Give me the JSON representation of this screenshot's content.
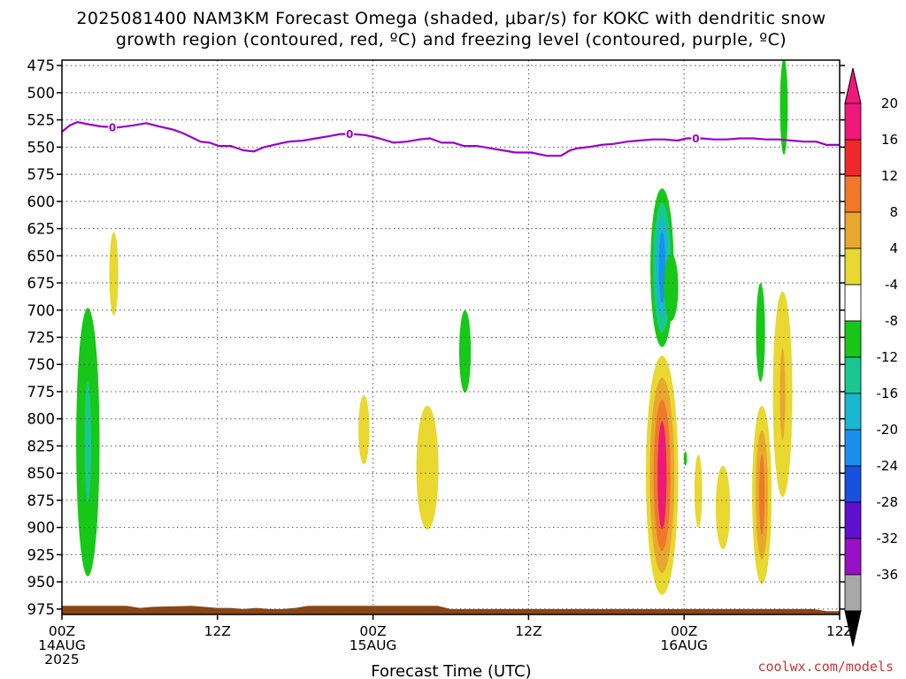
{
  "chart_data": {
    "type": "time-height contour",
    "title_lines": [
      "2025081400 NAM3KM Forecast Omega (shaded, μbar/s) for KOKC with dendritic snow",
      "growth region (contoured, red, ºC) and freezing level (contoured, purple, ºC)"
    ],
    "xlabel": "Forecast Time (UTC)",
    "credit": "coolwx.com/models",
    "x_unit": "forecast hour",
    "x_range": [
      0,
      60
    ],
    "y_unit": "hPa",
    "y_range": [
      470,
      980
    ],
    "y_ticks": [
      475,
      500,
      525,
      550,
      575,
      600,
      625,
      650,
      675,
      700,
      725,
      750,
      775,
      800,
      825,
      850,
      875,
      900,
      925,
      950,
      975
    ],
    "x_ticks": [
      {
        "h": 0,
        "lines": [
          "00Z",
          "14AUG",
          "2025"
        ]
      },
      {
        "h": 12,
        "lines": [
          "12Z"
        ]
      },
      {
        "h": 24,
        "lines": [
          "00Z",
          "15AUG"
        ]
      },
      {
        "h": 36,
        "lines": [
          "12Z"
        ]
      },
      {
        "h": 48,
        "lines": [
          "00Z",
          "16AUG"
        ]
      },
      {
        "h": 60,
        "lines": [
          "12Z"
        ]
      }
    ],
    "colorbar": {
      "labels": [
        "20",
        "16",
        "12",
        "8",
        "4",
        "-4",
        "-8",
        "-12",
        "-16",
        "-20",
        "-24",
        "-28",
        "-32",
        "-36"
      ],
      "colors_top_to_bottom": [
        "#f0187a",
        "#f02828",
        "#f07828",
        "#e8a830",
        "#e8d830",
        "#ffffff",
        "#18c818",
        "#18c890",
        "#18b8d0",
        "#1890f0",
        "#1850e0",
        "#6010d0",
        "#9810c8",
        "#a8a8a8"
      ],
      "top_arrow_color": "#f0187a",
      "bottom_arrow_color": "#000000"
    },
    "freezing_level": {
      "color": "#9900cc",
      "label": "0",
      "label_hours": [
        3.9,
        22.2,
        48.9
      ],
      "points": [
        [
          0,
          536
        ],
        [
          0.6,
          530
        ],
        [
          1.2,
          527
        ],
        [
          2,
          529
        ],
        [
          3,
          531
        ],
        [
          4.3,
          532
        ],
        [
          5.5,
          530
        ],
        [
          6.5,
          528
        ],
        [
          7.5,
          531
        ],
        [
          8.6,
          534
        ],
        [
          9.3,
          537
        ],
        [
          10,
          541
        ],
        [
          10.7,
          545
        ],
        [
          11.4,
          546
        ],
        [
          12.1,
          549
        ],
        [
          13,
          549
        ],
        [
          14,
          553
        ],
        [
          14.8,
          554
        ],
        [
          15.6,
          550
        ],
        [
          16.7,
          547
        ],
        [
          17.5,
          545
        ],
        [
          18.6,
          544
        ],
        [
          19.6,
          542
        ],
        [
          20.6,
          540
        ],
        [
          21.5,
          538
        ],
        [
          22.4,
          538
        ],
        [
          23.4,
          539
        ],
        [
          24.5,
          542
        ],
        [
          25.6,
          546
        ],
        [
          26.6,
          545
        ],
        [
          27.6,
          543
        ],
        [
          28.4,
          542
        ],
        [
          29.3,
          546
        ],
        [
          30.2,
          546
        ],
        [
          31,
          549
        ],
        [
          32,
          549
        ],
        [
          33,
          551
        ],
        [
          34,
          553
        ],
        [
          35,
          555
        ],
        [
          36.2,
          555
        ],
        [
          37.4,
          558
        ],
        [
          38.5,
          558
        ],
        [
          39.2,
          553
        ],
        [
          39.8,
          551
        ],
        [
          40.6,
          550
        ],
        [
          41.6,
          548
        ],
        [
          42.6,
          547
        ],
        [
          43.6,
          545
        ],
        [
          44.5,
          544
        ],
        [
          45.6,
          543
        ],
        [
          46.5,
          543
        ],
        [
          47.5,
          544
        ],
        [
          48.2,
          542
        ],
        [
          49.3,
          542
        ],
        [
          50.3,
          543
        ],
        [
          51.3,
          543
        ],
        [
          52.3,
          542
        ],
        [
          53.3,
          542
        ],
        [
          54.3,
          543
        ],
        [
          55.3,
          543
        ],
        [
          56.3,
          544
        ],
        [
          57.3,
          545
        ],
        [
          58.2,
          545
        ],
        [
          59,
          548
        ],
        [
          59.6,
          548
        ],
        [
          60,
          548
        ]
      ]
    },
    "omega_cells": [
      {
        "h": 2.0,
        "p_top": 698,
        "p_bot": 945,
        "hw": 0.9,
        "levels": [
          -8,
          -12
        ]
      },
      {
        "h": 4.0,
        "p_top": 628,
        "p_bot": 705,
        "hw": 0.35,
        "levels": [
          4
        ]
      },
      {
        "h": 23.3,
        "p_top": 778,
        "p_bot": 842,
        "hw": 0.42,
        "levels": [
          4
        ]
      },
      {
        "h": 28.2,
        "p_top": 788,
        "p_bot": 902,
        "hw": 0.85,
        "levels": [
          4
        ]
      },
      {
        "h": 31.1,
        "p_top": 700,
        "p_bot": 776,
        "hw": 0.45,
        "levels": [
          -8
        ]
      },
      {
        "h": 46.3,
        "p_top": 588,
        "p_bot": 734,
        "hw": 0.9,
        "levels": [
          -8,
          -12,
          -16,
          -20
        ]
      },
      {
        "h": 47.0,
        "p_top": 648,
        "p_bot": 710,
        "hw": 0.55,
        "levels": [
          -8
        ]
      },
      {
        "h": 46.3,
        "p_top": 742,
        "p_bot": 962,
        "hw": 1.25,
        "levels": [
          4,
          8,
          12,
          20
        ]
      },
      {
        "h": 48.1,
        "p_top": 830,
        "p_bot": 843,
        "hw": 0.12,
        "levels": [
          -8
        ]
      },
      {
        "h": 49.1,
        "p_top": 833,
        "p_bot": 900,
        "hw": 0.3,
        "levels": [
          4
        ]
      },
      {
        "h": 51.0,
        "p_top": 843,
        "p_bot": 920,
        "hw": 0.55,
        "levels": [
          4
        ]
      },
      {
        "h": 53.9,
        "p_top": 675,
        "p_bot": 766,
        "hw": 0.35,
        "levels": [
          -8
        ]
      },
      {
        "h": 54.0,
        "p_top": 788,
        "p_bot": 952,
        "hw": 0.75,
        "levels": [
          4,
          8,
          12
        ]
      },
      {
        "h": 55.7,
        "p_top": 468,
        "p_bot": 557,
        "hw": 0.3,
        "levels": [
          -8
        ]
      },
      {
        "h": 55.6,
        "p_top": 683,
        "p_bot": 872,
        "hw": 0.75,
        "levels": [
          4,
          8
        ]
      }
    ],
    "ground": {
      "color": "#8b4513",
      "points": [
        [
          0,
          972
        ],
        [
          5,
          972
        ],
        [
          6,
          974
        ],
        [
          7,
          973
        ],
        [
          10,
          972
        ],
        [
          11,
          973
        ],
        [
          12,
          974
        ],
        [
          13,
          974
        ],
        [
          14,
          975
        ],
        [
          15,
          974
        ],
        [
          16,
          975
        ],
        [
          17,
          975
        ],
        [
          18,
          974
        ],
        [
          19,
          972
        ],
        [
          20,
          972
        ],
        [
          29,
          972
        ],
        [
          30,
          975
        ],
        [
          45,
          975
        ],
        [
          52,
          975
        ],
        [
          58,
          975
        ],
        [
          59,
          977
        ],
        [
          60,
          977
        ]
      ]
    }
  }
}
